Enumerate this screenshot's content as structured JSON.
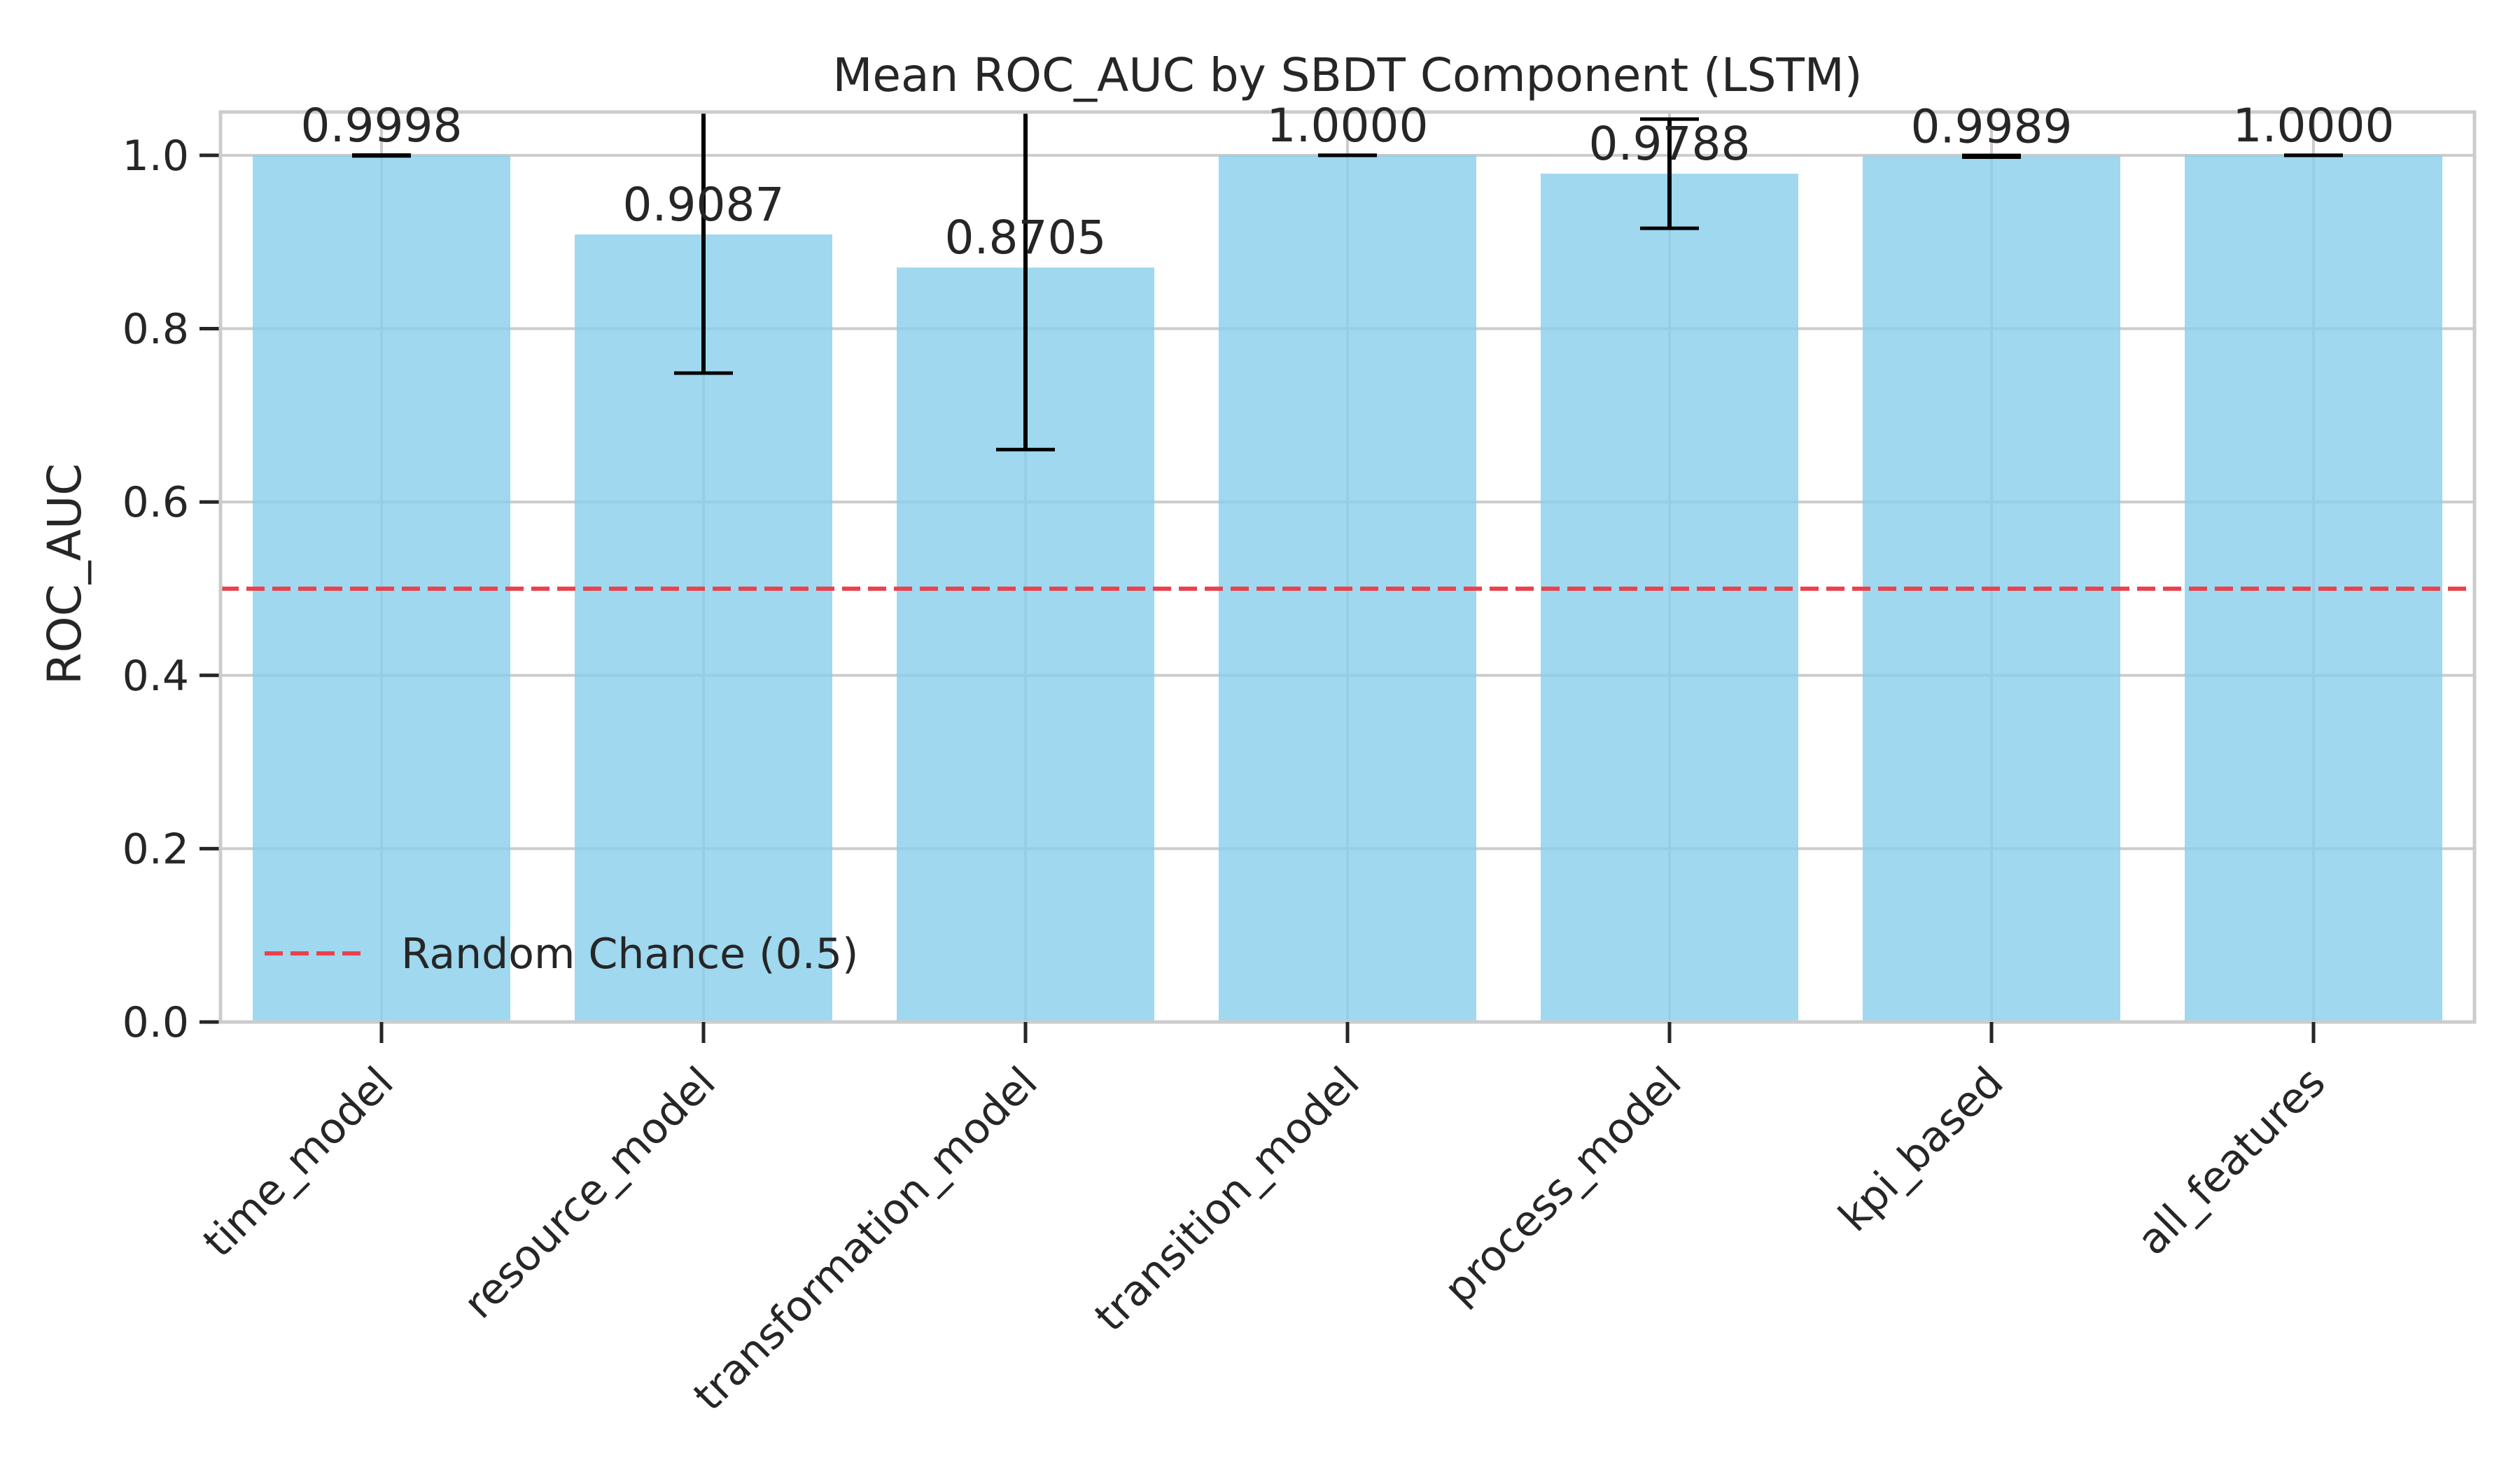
{
  "chart_data": {
    "type": "bar",
    "title": "Mean ROC_AUC by SBDT Component (LSTM)",
    "xlabel": "",
    "ylabel": "ROC_AUC",
    "categories": [
      "time_model",
      "resource_model",
      "transformation_model",
      "transition_model",
      "process_model",
      "kpi_based",
      "all_features"
    ],
    "values": [
      0.9998,
      0.9087,
      0.8705,
      1.0,
      0.9788,
      0.9989,
      1.0
    ],
    "value_labels": [
      "0.9998",
      "0.9087",
      "0.8705",
      "1.0000",
      "0.9788",
      "0.9989",
      "1.0000"
    ],
    "errors": [
      0.0005,
      0.16,
      0.21,
      0.0,
      0.063,
      0.001,
      0.0
    ],
    "ylim": [
      0.0,
      1.05
    ],
    "yticks": [
      0.0,
      0.2,
      0.4,
      0.6,
      0.8,
      1.0
    ],
    "ytick_labels": [
      "0.0",
      "0.2",
      "0.4",
      "0.6",
      "0.8",
      "1.0"
    ],
    "reference_line": {
      "y": 0.5,
      "label": "Random Chance (0.5)",
      "style": "dashed"
    },
    "grid": true,
    "legend_position": "lower-left",
    "colors": {
      "bar": "#87ceeb",
      "error_bar": "#000000",
      "reference_line": "#e8434d",
      "grid": "#cccccc",
      "axes": "#cccccc"
    }
  }
}
